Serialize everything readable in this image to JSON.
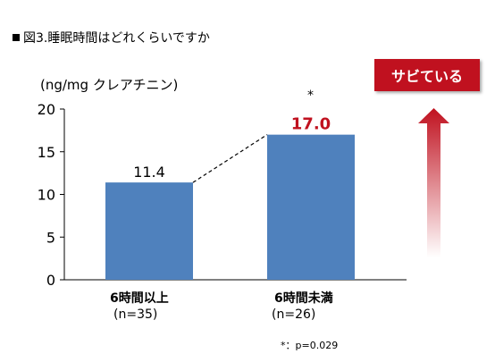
{
  "title": "図3.睡眠時間はどれくらいですか",
  "badge": "サビている",
  "significance_mark": "*",
  "footnote": "*：p=0.029",
  "colors": {
    "bar": "#4f81bd",
    "highlight_label": "#c0111f",
    "badge": "#c0111f"
  },
  "chart_data": {
    "type": "bar",
    "title": "",
    "ylabel": "(ng/mg クレアチニン)",
    "xlabel": "",
    "ylim": [
      0,
      20
    ],
    "yticks": [
      "0",
      "5",
      "10",
      "15",
      "20"
    ],
    "grid": false,
    "categories": [
      "6時間以上",
      "6時間未満"
    ],
    "sample_sizes": [
      "(n=35)",
      "(n=26)"
    ],
    "values": [
      11.4,
      17.0
    ],
    "value_labels": [
      "11.4",
      "17.0"
    ]
  }
}
